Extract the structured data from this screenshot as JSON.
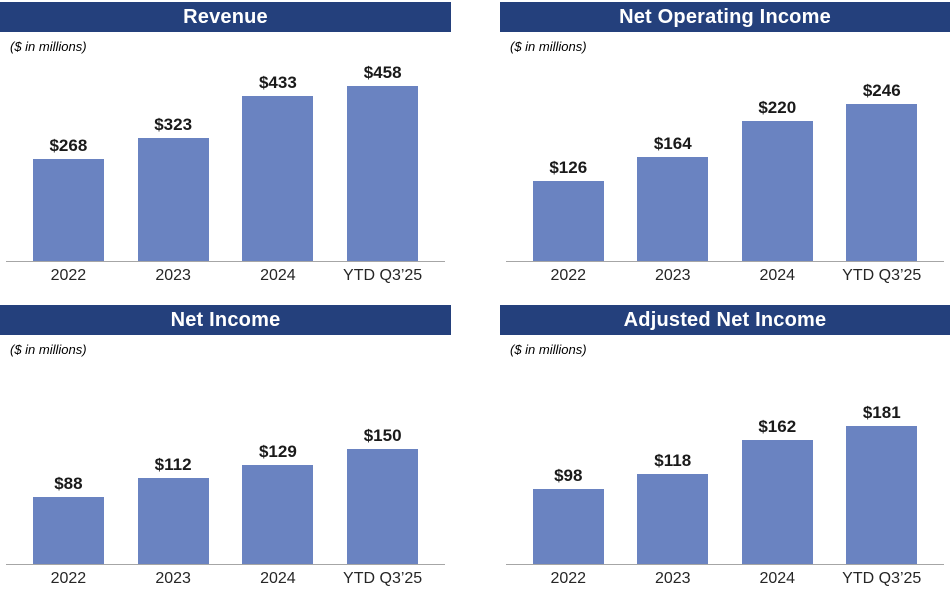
{
  "colors": {
    "banner_blue": "#24407C",
    "bar_blue": "#6A83C1",
    "axis_line_gray": "#A6A6A6",
    "title_text": "#FFFFFF",
    "value_text": "#1A1A1A",
    "axis_label_text": "#262626",
    "background": "#FFFFFF"
  },
  "chart_data": [
    {
      "type": "bar",
      "title": "Revenue",
      "subtitle": "($ in millions)",
      "categories": [
        "2022",
        "2023",
        "2024",
        "YTD Q3’25"
      ],
      "values": [
        268,
        323,
        433,
        458
      ],
      "value_labels": [
        "$268",
        "$323",
        "$433",
        "$458"
      ],
      "ylabel": "$ in millions",
      "ylim": [
        0,
        500
      ],
      "grid": false,
      "legend": false
    },
    {
      "type": "bar",
      "title": "Net Operating Income",
      "subtitle": "($ in millions)",
      "categories": [
        "2022",
        "2023",
        "2024",
        "YTD Q3’25"
      ],
      "values": [
        126,
        164,
        220,
        246
      ],
      "value_labels": [
        "$126",
        "$164",
        "$220",
        "$246"
      ],
      "ylabel": "$ in millions",
      "ylim": [
        0,
        300
      ],
      "grid": false,
      "legend": false
    },
    {
      "type": "bar",
      "title": "Net Income",
      "subtitle": "($ in millions)",
      "categories": [
        "2022",
        "2023",
        "2024",
        "YTD Q3’25"
      ],
      "values": [
        88,
        112,
        129,
        150
      ],
      "value_labels": [
        "$88",
        "$112",
        "$129",
        "$150"
      ],
      "ylabel": "$ in millions",
      "ylim": [
        0,
        250
      ],
      "grid": false,
      "legend": false
    },
    {
      "type": "bar",
      "title": "Adjusted Net Income",
      "subtitle": "($ in millions)",
      "categories": [
        "2022",
        "2023",
        "2024",
        "YTD Q3’25"
      ],
      "values": [
        98,
        118,
        162,
        181
      ],
      "value_labels": [
        "$98",
        "$118",
        "$162",
        "$181"
      ],
      "ylabel": "$ in millions",
      "ylim": [
        0,
        250
      ],
      "grid": false,
      "legend": false
    }
  ]
}
